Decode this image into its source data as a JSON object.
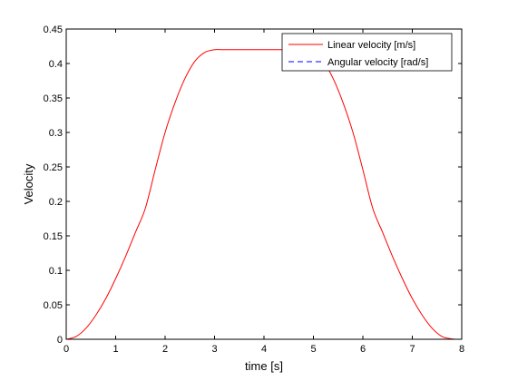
{
  "chart_data": {
    "type": "line",
    "xlabel": "time [s]",
    "ylabel": "Velocity",
    "xlim": [
      0,
      8
    ],
    "ylim": [
      0,
      0.45
    ],
    "x_ticks": [
      0,
      1,
      2,
      3,
      4,
      5,
      6,
      7,
      8
    ],
    "y_ticks": [
      0,
      0.05,
      0.1,
      0.15,
      0.2,
      0.25,
      0.3,
      0.35,
      0.4,
      0.45
    ],
    "x_tick_labels": [
      "0",
      "1",
      "2",
      "3",
      "4",
      "5",
      "6",
      "7",
      "8"
    ],
    "y_tick_labels": [
      "0",
      "0.05",
      "0.1",
      "0.15",
      "0.2",
      "0.25",
      "0.3",
      "0.35",
      "0.4",
      "0.45"
    ],
    "grid": false,
    "legend_position": "top-right",
    "series": [
      {
        "name": "Linear velocity [m/s]",
        "color": "#ff0000",
        "line_style": "solid",
        "x": [
          0,
          0.2,
          0.4,
          0.6,
          0.8,
          1.0,
          1.2,
          1.4,
          1.6,
          1.8,
          2.0,
          2.2,
          2.4,
          2.6,
          2.8,
          3.0,
          3.15,
          3.4,
          3.8,
          4.2,
          4.6,
          4.8,
          5.0,
          5.2,
          5.4,
          5.6,
          5.8,
          6.0,
          6.2,
          6.4,
          6.6,
          6.8,
          7.0,
          7.2,
          7.4,
          7.6,
          7.8,
          7.9
        ],
        "y": [
          0,
          0.004,
          0.016,
          0.035,
          0.059,
          0.088,
          0.12,
          0.155,
          0.19,
          0.246,
          0.3,
          0.343,
          0.378,
          0.403,
          0.416,
          0.42,
          0.42,
          0.42,
          0.42,
          0.42,
          0.42,
          0.42,
          0.416,
          0.403,
          0.378,
          0.343,
          0.3,
          0.246,
          0.19,
          0.155,
          0.12,
          0.088,
          0.059,
          0.035,
          0.016,
          0.004,
          0.0005,
          0
        ]
      },
      {
        "name": "Angular velocity [rad/s]",
        "color": "#0000ff",
        "line_style": "dashed",
        "x": [
          0,
          7.9
        ],
        "y": [
          0,
          0
        ]
      }
    ]
  }
}
